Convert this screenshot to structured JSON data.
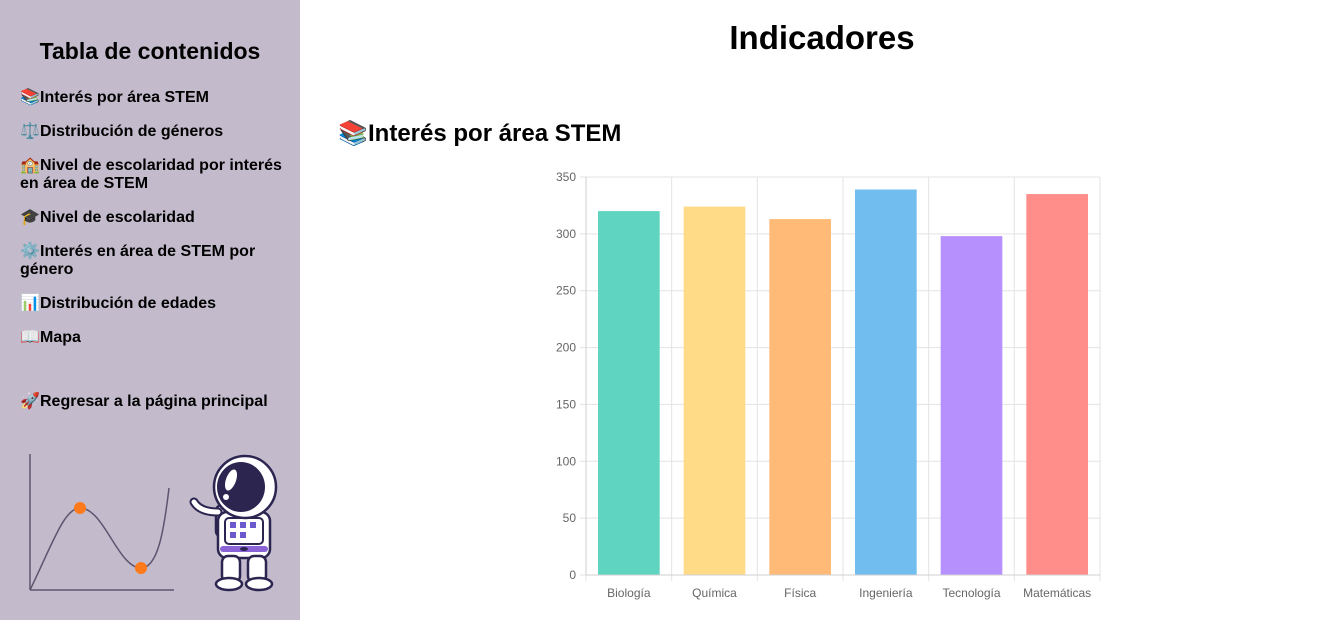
{
  "sidebar": {
    "title": "Tabla de contenidos",
    "items": [
      {
        "icon": "📚",
        "label": "Interés por área STEM"
      },
      {
        "icon": "⚖️",
        "label": "Distribución de géneros"
      },
      {
        "icon": "🏫",
        "label": "Nivel de escolaridad por interés en área de STEM"
      },
      {
        "icon": "🎓",
        "label": "Nivel de escolaridad"
      },
      {
        "icon": "⚙️",
        "label": "Interés en área de STEM por género"
      },
      {
        "icon": "📊",
        "label": "Distribución de edades"
      },
      {
        "icon": "📖",
        "label": "Mapa"
      }
    ],
    "home": {
      "icon": "🚀",
      "label": "Regresar a la página principal"
    }
  },
  "main": {
    "title": "Indicadores",
    "section": {
      "icon": "📚",
      "title": "Interés por área STEM"
    }
  },
  "chart_data": {
    "type": "bar",
    "categories": [
      "Biología",
      "Química",
      "Física",
      "Ingeniería",
      "Tecnología",
      "Matemáticas"
    ],
    "values": [
      320,
      324,
      313,
      339,
      298,
      335
    ],
    "colors": [
      "#5fd4c1",
      "#ffdb88",
      "#ffba77",
      "#72bdef",
      "#b690fd",
      "#ff8e8b"
    ],
    "ylim": [
      0,
      350
    ],
    "yticks": [
      0,
      50,
      100,
      150,
      200,
      250,
      300,
      350
    ],
    "grid": true,
    "title": "",
    "xlabel": "",
    "ylabel": ""
  }
}
